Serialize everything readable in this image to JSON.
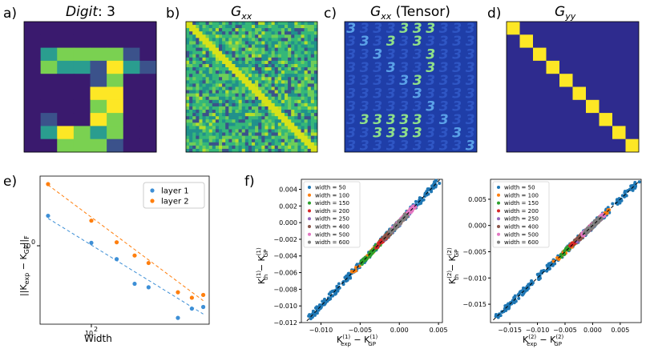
{
  "panel_labels": [
    "a)",
    "b)",
    "c)",
    "d)",
    "e)",
    "f)"
  ],
  "colors": {
    "viridis": [
      "#440154",
      "#3b528b",
      "#21918c",
      "#5ec962",
      "#fde725"
    ],
    "bg_dark": "#2f2d8e",
    "digit_bg": "#3a1a6e",
    "blue": "#1f77b4",
    "layer1": "#3d8fd6",
    "layer2": "#ff7f0e"
  },
  "chart_data": [
    {
      "id": "a",
      "type": "heatmap",
      "title_main": "Digit",
      "title_suffix": ": 3",
      "grid": [
        [
          0,
          0,
          0,
          0,
          0,
          0,
          0,
          0
        ],
        [
          0,
          0,
          0,
          0,
          0,
          0,
          0,
          0
        ],
        [
          0,
          2,
          3,
          3,
          3,
          3,
          1,
          0
        ],
        [
          0,
          3,
          2,
          2,
          1,
          4,
          2,
          1
        ],
        [
          0,
          0,
          0,
          0,
          1,
          3,
          0,
          0
        ],
        [
          0,
          0,
          0,
          0,
          4,
          4,
          0,
          0
        ],
        [
          0,
          0,
          0,
          0,
          3,
          4,
          0,
          0
        ],
        [
          0,
          1,
          0,
          0,
          4,
          3,
          0,
          0
        ],
        [
          0,
          2,
          4,
          3,
          2,
          3,
          0,
          0
        ],
        [
          0,
          0,
          3,
          3,
          3,
          1,
          0,
          0
        ]
      ]
    },
    {
      "id": "b",
      "type": "heatmap",
      "title": "G",
      "title_sub": "xx",
      "description_free": true
    },
    {
      "id": "c",
      "type": "heatmap",
      "title": "G",
      "title_sub": "xx",
      "title_suffix": " (Tensor)",
      "glyph": "3",
      "bright_cells": [
        [
          0,
          4
        ],
        [
          0,
          5
        ],
        [
          0,
          6
        ],
        [
          1,
          3
        ],
        [
          1,
          5
        ],
        [
          2,
          6
        ],
        [
          3,
          6
        ],
        [
          4,
          4
        ],
        [
          4,
          5
        ],
        [
          5,
          5
        ],
        [
          6,
          6
        ],
        [
          7,
          1
        ],
        [
          7,
          2
        ],
        [
          7,
          3
        ],
        [
          7,
          4
        ],
        [
          7,
          5
        ],
        [
          8,
          2
        ],
        [
          8,
          3
        ],
        [
          8,
          4
        ],
        [
          8,
          5
        ]
      ]
    },
    {
      "id": "d",
      "type": "heatmap",
      "title": "G",
      "title_sub": "yy",
      "blocks": 10
    },
    {
      "id": "e",
      "type": "scatter",
      "xlabel": "Width",
      "ylabel": "||K",
      "ylabel_full": "||K_exp − K_GP||_F",
      "x_tick_label": "10",
      "x_tick_exp": "2",
      "y_tick_label": "10",
      "y_tick_exp": "0",
      "xscale": "log",
      "yscale": "log",
      "xlim": [
        44,
        660
      ],
      "ylim": [
        0.27,
        3.2
      ],
      "legend": [
        "layer 1",
        "layer 2"
      ],
      "series": [
        {
          "name": "layer 1",
          "x": [
            50,
            100,
            150,
            200,
            250,
            400,
            500,
            600
          ],
          "y": [
            1.65,
            1.05,
            0.8,
            0.53,
            0.5,
            0.3,
            0.35,
            0.36
          ]
        },
        {
          "name": "layer 2",
          "x": [
            50,
            100,
            150,
            200,
            250,
            400,
            500,
            600
          ],
          "y": [
            2.8,
            1.52,
            1.06,
            0.85,
            0.75,
            0.46,
            0.42,
            0.44
          ]
        }
      ],
      "fits": [
        {
          "name": "layer 1",
          "x": [
            50,
            600
          ],
          "y": [
            1.58,
            0.32
          ]
        },
        {
          "name": "layer 2",
          "x": [
            50,
            600
          ],
          "y": [
            2.76,
            0.4
          ]
        }
      ]
    },
    {
      "id": "f1",
      "type": "scatter",
      "xlabel_main": "K",
      "ylabel_main": "K",
      "xlim": [
        -0.0125,
        0.0055
      ],
      "ylim": [
        -0.012,
        0.0052
      ],
      "xticks": [
        -0.01,
        -0.005,
        0.0,
        0.005
      ],
      "xtick_labels": [
        "−0.010",
        "−0.005",
        "0.000",
        "0.005"
      ],
      "yticks": [
        -0.012,
        -0.01,
        -0.008,
        -0.006,
        -0.004,
        -0.002,
        0.0,
        0.002,
        0.004
      ],
      "ytick_labels": [
        "−0.012",
        "−0.010",
        "−0.008",
        "−0.006",
        "−0.004",
        "−0.002",
        "0.000",
        "0.002",
        "0.004"
      ],
      "legend": [
        "width = 50",
        "width = 100",
        "width = 150",
        "width = 200",
        "width = 250",
        "width = 400",
        "width = 500",
        "width = 600"
      ],
      "series_colors": [
        "#1f77b4",
        "#ff7f0e",
        "#2ca02c",
        "#d62728",
        "#9467bd",
        "#8c564b",
        "#e377c2",
        "#7f7f7f"
      ],
      "series_ranges": [
        [
          -0.0115,
          0.005
        ],
        [
          -0.006,
          0.002
        ],
        [
          -0.005,
          -0.001
        ],
        [
          -0.003,
          0.001
        ],
        [
          -0.002,
          0.002
        ],
        [
          -0.002,
          0.001
        ],
        [
          -0.001,
          0.002
        ],
        [
          -0.0012,
          0.001
        ]
      ],
      "diagonal": [
        -0.0118,
        0.0052
      ]
    },
    {
      "id": "f2",
      "type": "scatter",
      "xlim": [
        -0.0185,
        0.0088
      ],
      "ylim": [
        -0.0185,
        0.0088
      ],
      "xticks": [
        -0.015,
        -0.01,
        -0.005,
        0.0,
        0.005
      ],
      "xtick_labels": [
        "−0.015",
        "−0.010",
        "−0.005",
        "0.000",
        "0.005"
      ],
      "yticks": [
        -0.015,
        -0.01,
        -0.005,
        0.0,
        0.005
      ],
      "ytick_labels": [
        "−0.015",
        "−0.010",
        "−0.005",
        "0.000",
        "0.005"
      ],
      "legend": [
        "width = 50",
        "width = 100",
        "width = 150",
        "width = 200",
        "width = 250",
        "width = 400",
        "width = 500",
        "width = 600"
      ],
      "series_colors": [
        "#1f77b4",
        "#ff7f0e",
        "#2ca02c",
        "#d62728",
        "#9467bd",
        "#8c564b",
        "#e377c2",
        "#7f7f7f"
      ],
      "series_ranges": [
        [
          -0.0175,
          0.0085
        ],
        [
          -0.007,
          0.003
        ],
        [
          -0.006,
          0.001
        ],
        [
          -0.004,
          0.001
        ],
        [
          -0.003,
          0.002
        ],
        [
          -0.003,
          0.0015
        ],
        [
          -0.002,
          0.002
        ],
        [
          -0.0015,
          0.0015
        ]
      ],
      "diagonal": [
        -0.018,
        0.0085
      ]
    }
  ]
}
